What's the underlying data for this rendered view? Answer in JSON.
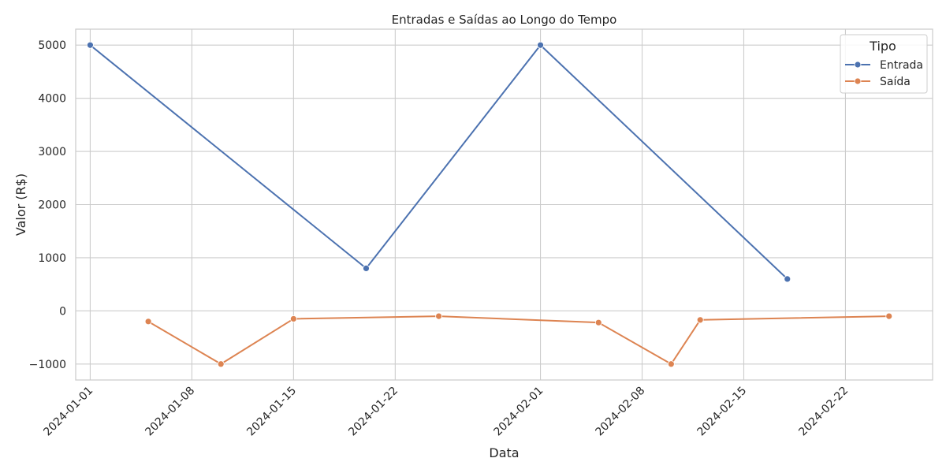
{
  "chart_data": {
    "type": "line",
    "title": "Entradas e Saídas ao Longo do Tempo",
    "xlabel": "Data",
    "ylabel": "Valor (R$)",
    "x_ticks": [
      "2024-01-01",
      "2024-01-08",
      "2024-01-15",
      "2024-01-22",
      "2024-02-01",
      "2024-02-08",
      "2024-02-15",
      "2024-02-22"
    ],
    "y_ticks": [
      5000,
      4000,
      3000,
      2000,
      1000,
      0,
      -1000
    ],
    "y_tick_labels": [
      "5000",
      "4000",
      "3000",
      "2000",
      "1000",
      "0",
      "−1000"
    ],
    "xlim": [
      "2023-12-31",
      "2024-02-28"
    ],
    "ylim": [
      -1300,
      5300
    ],
    "grid": true,
    "legend": {
      "title": "Tipo",
      "placement": "top-right"
    },
    "series": [
      {
        "name": "Entrada",
        "color": "#4c72b0",
        "points": [
          {
            "x": "2024-01-01",
            "y": 5000
          },
          {
            "x": "2024-01-20",
            "y": 800
          },
          {
            "x": "2024-02-01",
            "y": 5000
          },
          {
            "x": "2024-02-18",
            "y": 600
          }
        ]
      },
      {
        "name": "Saída",
        "color": "#dd8452",
        "points": [
          {
            "x": "2024-01-05",
            "y": -200
          },
          {
            "x": "2024-01-10",
            "y": -1000
          },
          {
            "x": "2024-01-15",
            "y": -150
          },
          {
            "x": "2024-01-25",
            "y": -100
          },
          {
            "x": "2024-02-05",
            "y": -220
          },
          {
            "x": "2024-02-10",
            "y": -1000
          },
          {
            "x": "2024-02-12",
            "y": -170
          },
          {
            "x": "2024-02-25",
            "y": -100
          }
        ]
      }
    ]
  }
}
